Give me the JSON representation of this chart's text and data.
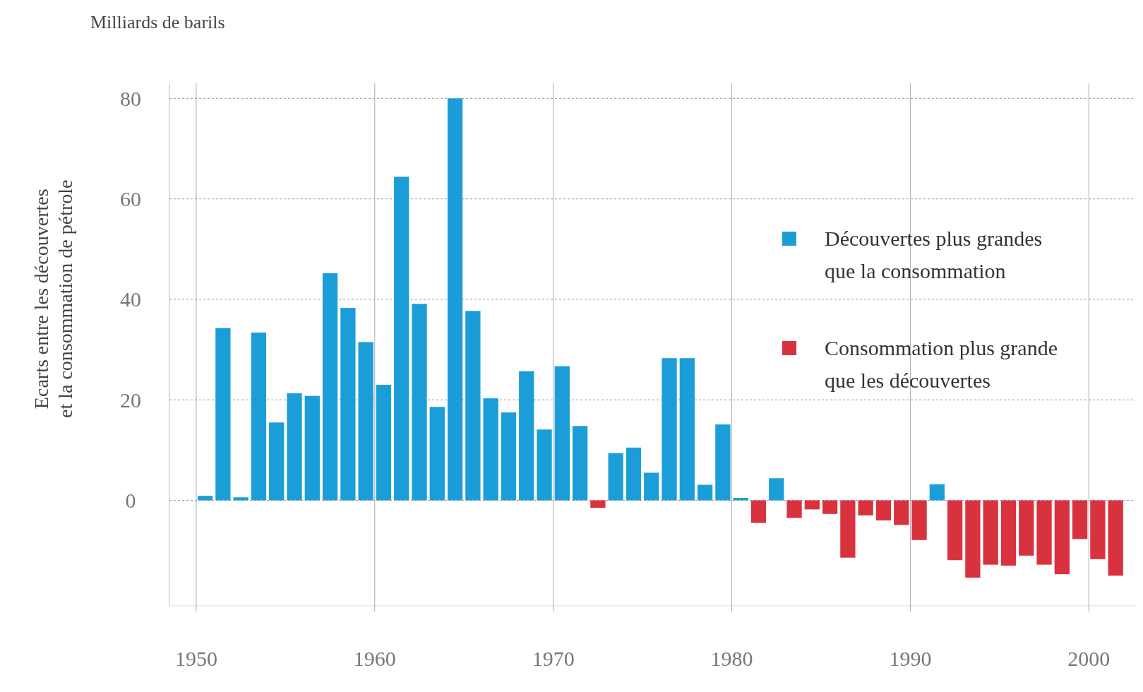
{
  "chart_data": {
    "type": "bar",
    "title": "Milliards de barils",
    "ylabel": "Ecarts entre les découvertes\net la consommation de pétrole",
    "x": [
      1950,
      1951,
      1952,
      1953,
      1954,
      1955,
      1956,
      1957,
      1958,
      1959,
      1960,
      1961,
      1962,
      1963,
      1964,
      1965,
      1966,
      1967,
      1968,
      1969,
      1970,
      1971,
      1972,
      1973,
      1974,
      1975,
      1976,
      1977,
      1978,
      1979,
      1980,
      1981,
      1982,
      1983,
      1984,
      1985,
      1986,
      1987,
      1988,
      1989,
      1990,
      1991,
      1992,
      1993,
      1994,
      1995,
      1996,
      1997,
      1998,
      1999,
      2000,
      2001
    ],
    "series": [
      {
        "name": "Découvertes plus grandes\nque la consommation",
        "color": "#1b9ed8",
        "values": [
          0.9,
          34.3,
          0.6,
          33.4,
          15.5,
          21.3,
          20.8,
          45.2,
          38.3,
          31.5,
          23,
          64.4,
          39.1,
          18.6,
          80,
          37.7,
          20.3,
          17.5,
          25.7,
          14.1,
          26.7,
          14.8,
          null,
          9.4,
          10.5,
          5.5,
          28.3,
          28.3,
          3.1,
          15.1,
          0.5,
          null,
          4.4,
          null,
          null,
          null,
          null,
          null,
          null,
          null,
          null,
          3.2,
          null,
          null,
          null,
          null,
          null,
          null,
          null,
          null,
          null,
          null
        ]
      },
      {
        "name": "Consommation plus grande\nque les découvertes",
        "color": "#d9323f",
        "values": [
          null,
          null,
          null,
          null,
          null,
          null,
          null,
          null,
          null,
          null,
          null,
          null,
          null,
          null,
          null,
          null,
          null,
          null,
          null,
          null,
          null,
          null,
          -1.5,
          null,
          null,
          null,
          null,
          null,
          null,
          null,
          null,
          -4.5,
          null,
          -3.5,
          -1.8,
          -2.7,
          -11.4,
          -3,
          -4,
          -4.9,
          -7.9,
          null,
          -11.9,
          -15.4,
          -12.8,
          -13,
          -11,
          -12.8,
          -14.7,
          -7.7,
          -11.7,
          -15
        ]
      }
    ],
    "xlim": [
      1948.5,
      2002.6
    ],
    "xticks": [
      1950,
      1960,
      1970,
      1980,
      1990,
      2000
    ],
    "ylim": [
      -21,
      83
    ],
    "yticks": [
      0,
      20,
      40,
      60,
      80
    ],
    "grid": true,
    "legend": "right"
  }
}
